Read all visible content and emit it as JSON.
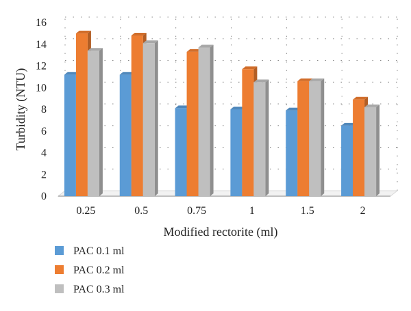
{
  "chart_data": {
    "type": "bar",
    "style": "3d-clustered-column",
    "xlabel": "Modified rectorite (ml)",
    "ylabel": "Turbidity (NTU)",
    "categories": [
      "0.25",
      "0.5",
      "0.75",
      "1",
      "1.5",
      "2"
    ],
    "ylim": [
      0,
      16
    ],
    "yticks": [
      "0",
      "2",
      "4",
      "6",
      "8",
      "10",
      "12",
      "14",
      "16"
    ],
    "grid": "dotted horizontal",
    "legend_position": "bottom-left",
    "series": [
      {
        "name": "PAC 0.1 ml",
        "color": "#5B9BD5",
        "values": [
          11.2,
          11.2,
          8.1,
          8.0,
          7.9,
          6.5
        ]
      },
      {
        "name": "PAC 0.2 ml",
        "color": "#ED7D31",
        "values": [
          15.0,
          14.8,
          13.3,
          11.7,
          10.6,
          8.9
        ]
      },
      {
        "name": "PAC 0.3 ml",
        "color": "#BFBFBF",
        "values": [
          13.4,
          14.1,
          13.7,
          10.5,
          10.6,
          8.2
        ]
      }
    ]
  }
}
